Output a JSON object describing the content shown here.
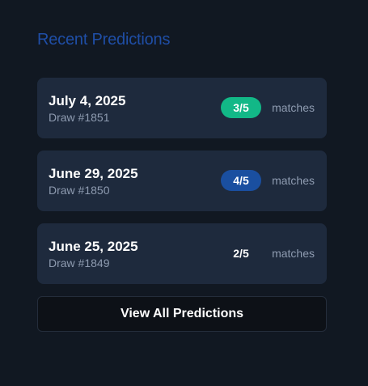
{
  "section": {
    "title": "Recent Predictions"
  },
  "predictions": [
    {
      "date": "July 4, 2025",
      "draw": "Draw #1851",
      "score": "3/5",
      "matches_label": "matches",
      "badge_color": "#12b887"
    },
    {
      "date": "June 29, 2025",
      "draw": "Draw #1850",
      "score": "4/5",
      "matches_label": "matches",
      "badge_color": "#1a4fa0"
    },
    {
      "date": "June 25, 2025",
      "draw": "Draw #1849",
      "score": "2/5",
      "matches_label": "matches",
      "badge_color": ""
    }
  ],
  "view_all_label": "View All Predictions"
}
